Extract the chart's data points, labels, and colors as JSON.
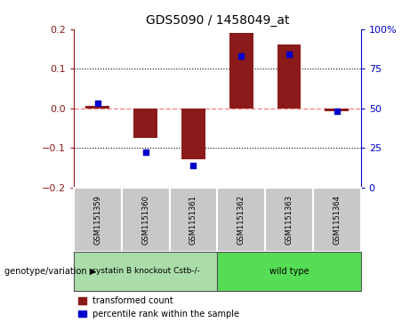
{
  "title": "GDS5090 / 1458049_at",
  "samples": [
    "GSM1151359",
    "GSM1151360",
    "GSM1151361",
    "GSM1151362",
    "GSM1151363",
    "GSM1151364"
  ],
  "red_values": [
    0.005,
    -0.075,
    -0.13,
    0.19,
    0.16,
    -0.008
  ],
  "blue_values_pct": [
    53,
    22,
    14,
    83,
    84,
    48
  ],
  "ylim_left": [
    -0.2,
    0.2
  ],
  "ylim_right": [
    0,
    100
  ],
  "yticks_left": [
    -0.2,
    -0.1,
    0.0,
    0.1,
    0.2
  ],
  "yticks_right": [
    0,
    25,
    50,
    75,
    100
  ],
  "bar_color_red": "#8B1A1A",
  "bar_color_blue": "#0000CC",
  "zero_line_color": "#FF8888",
  "legend_label_red": "transformed count",
  "legend_label_blue": "percentile rank within the sample",
  "group1_label": "cystatin B knockout Cstb-/-",
  "group2_label": "wild type",
  "group1_color": "#aaddaa",
  "group2_color": "#55dd55",
  "sample_box_color": "#c8c8c8",
  "xlabel_text": "genotype/variation ▶"
}
